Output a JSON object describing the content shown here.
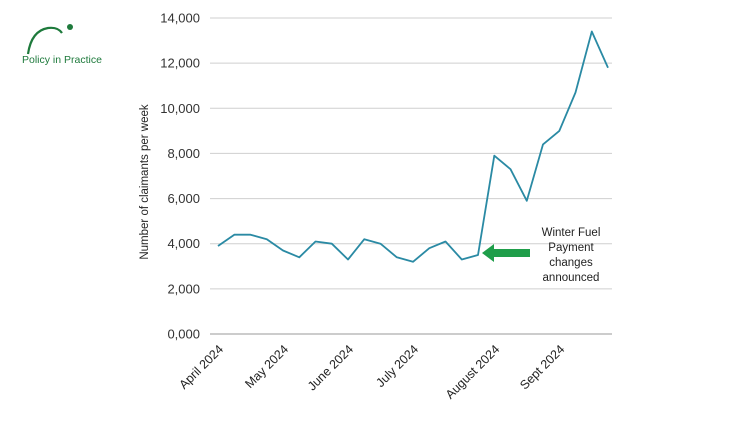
{
  "logo": {
    "text": "Policy in Practice"
  },
  "colors": {
    "line": "#2a8aa4",
    "axis": "#555555",
    "arrow": "#1f9e4a",
    "logo": "#1e7a3c"
  },
  "chart_data": {
    "type": "line",
    "ylabel": "Number of claimants per week",
    "ylim": [
      0,
      14000
    ],
    "yticks": [
      {
        "value": 0,
        "label": "0,000"
      },
      {
        "value": 2000,
        "label": "2,000"
      },
      {
        "value": 4000,
        "label": "4,000"
      },
      {
        "value": 6000,
        "label": "6,000"
      },
      {
        "value": 8000,
        "label": "8,000"
      },
      {
        "value": 10000,
        "label": "10,000"
      },
      {
        "value": 12000,
        "label": "12,000"
      },
      {
        "value": 14000,
        "label": "14,000"
      }
    ],
    "grid": "horizontal",
    "xticks": [
      {
        "index": 0,
        "label": "April 2024"
      },
      {
        "index": 4,
        "label": "May 2024"
      },
      {
        "index": 8,
        "label": "June 2024"
      },
      {
        "index": 12,
        "label": "July 2024"
      },
      {
        "index": 17,
        "label": "August 2024"
      },
      {
        "index": 21,
        "label": "Sept 2024"
      }
    ],
    "values": [
      3900,
      4400,
      4400,
      4200,
      3700,
      3400,
      4100,
      4000,
      3300,
      4200,
      4000,
      3400,
      3200,
      3800,
      4100,
      3300,
      3500,
      7900,
      7300,
      5900,
      8400,
      9000,
      10700,
      13400,
      11800
    ],
    "annotation": {
      "lines": [
        "Winter Fuel",
        "Payment",
        "changes",
        "announced"
      ],
      "points_to_index": 16
    }
  }
}
